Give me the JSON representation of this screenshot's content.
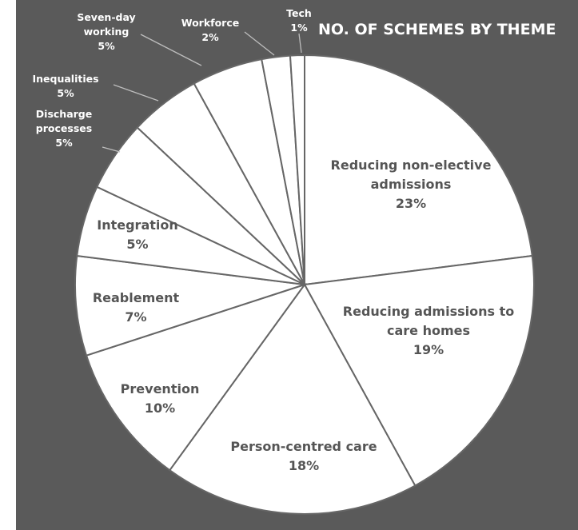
{
  "chart_data": {
    "type": "pie",
    "title": "NO. OF SCHEMES BY THEME",
    "slices": [
      {
        "label": [
          "Reducing non-elective",
          "admissions"
        ],
        "value": 23,
        "pct": "23%"
      },
      {
        "label": [
          "Reducing admissions to",
          "care homes"
        ],
        "value": 19,
        "pct": "19%"
      },
      {
        "label": [
          "Person-centred care"
        ],
        "value": 18,
        "pct": "18%"
      },
      {
        "label": [
          "Prevention"
        ],
        "value": 10,
        "pct": "10%"
      },
      {
        "label": [
          "Reablement"
        ],
        "value": 7,
        "pct": "7%"
      },
      {
        "label": [
          "Integration"
        ],
        "value": 5,
        "pct": "5%"
      },
      {
        "label": [
          "Discharge",
          "processes"
        ],
        "value": 5,
        "pct": "5%"
      },
      {
        "label": [
          "Inequalities"
        ],
        "value": 5,
        "pct": "5%"
      },
      {
        "label": [
          "Seven-day",
          "working"
        ],
        "value": 5,
        "pct": "5%"
      },
      {
        "label": [
          "Workforce"
        ],
        "value": 2,
        "pct": "2%"
      },
      {
        "label": [
          "Tech"
        ],
        "value": 1,
        "pct": "1%"
      }
    ],
    "colors": {
      "slice_fill": "#ffffff",
      "slice_border": "#666666",
      "background": "#5a5a5a",
      "inside_text": "#555555",
      "outside_text": "#ffffff"
    }
  }
}
